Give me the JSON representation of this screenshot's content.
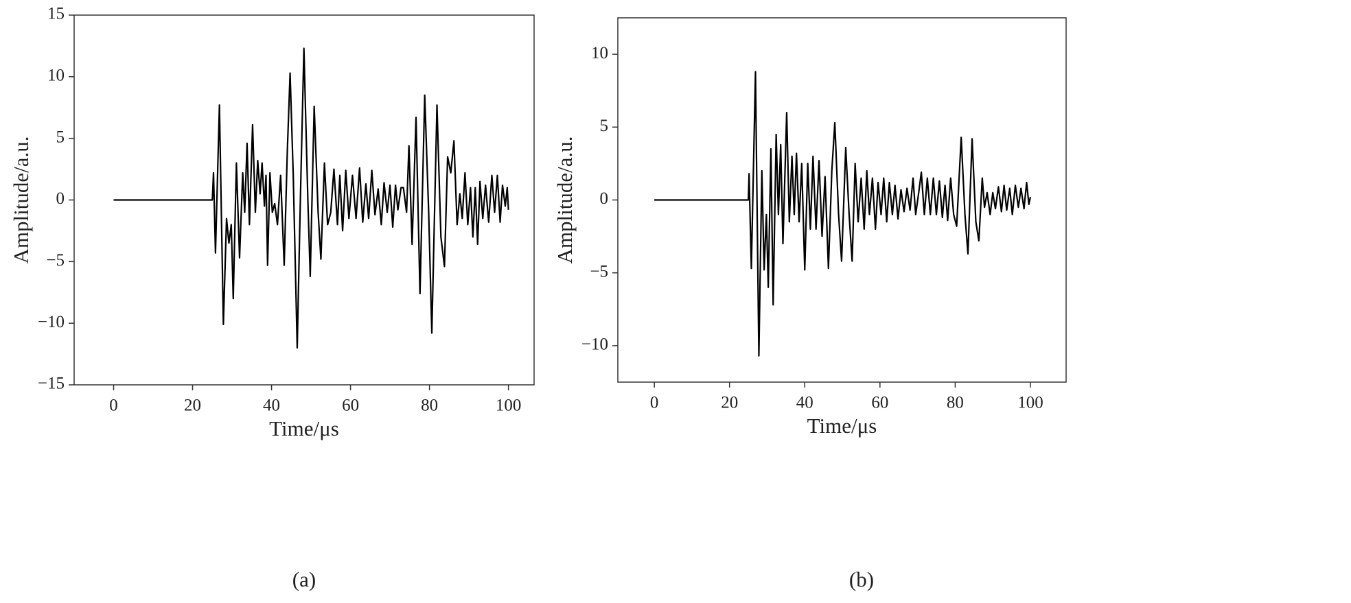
{
  "chart_data": [
    {
      "type": "line",
      "caption": "(a)",
      "xlabel": "Time/μs",
      "ylabel": "Amplitude/a.u.",
      "xlim": [
        -10,
        106.5
      ],
      "ylim": [
        -15,
        15
      ],
      "xticks": [
        0,
        20,
        40,
        60,
        80,
        100
      ],
      "yticks": [
        {
          "value": -15,
          "label": "−15"
        },
        {
          "value": -10,
          "label": "−10"
        },
        {
          "value": -5,
          "label": "−5"
        },
        0,
        5,
        10,
        15
      ],
      "x": [
        0,
        25,
        25.3,
        25.8,
        26.8,
        27.8,
        28.6,
        29.2,
        29.8,
        30.3,
        31.1,
        31.9,
        32.7,
        33.2,
        33.8,
        34.4,
        35.2,
        35.9,
        36.5,
        37.1,
        37.6,
        38.2,
        38.6,
        39,
        39.6,
        40.2,
        40.8,
        41.5,
        42.3,
        43.2,
        44,
        44.7,
        45.5,
        46.5,
        47.3,
        48.2,
        49.2,
        49.8,
        50.8,
        51.8,
        52.5,
        53.4,
        54.2,
        55,
        55.8,
        56.7,
        57.3,
        58,
        58.8,
        59.6,
        60.5,
        61.4,
        62.3,
        63.1,
        63.9,
        64.6,
        65.4,
        66.2,
        67,
        67.8,
        68.5,
        69.3,
        70,
        70.7,
        71.4,
        72,
        72.8,
        73.4,
        74.2,
        74.8,
        75.6,
        76.6,
        77.6,
        78.8,
        79.8,
        80.6,
        81.9,
        82.9,
        83.8,
        84.6,
        85.4,
        86.2,
        87,
        87.7,
        88.3,
        89,
        89.7,
        90.4,
        91,
        91.6,
        92.2,
        92.8,
        93.5,
        94.2,
        95,
        95.8,
        96.5,
        97.2,
        97.9,
        98.5,
        99.2,
        99.7,
        100
      ],
      "series": [
        {
          "color": "#000000",
          "values": [
            0,
            0,
            2.2,
            -4.3,
            7.7,
            -10.1,
            -1.5,
            -3.5,
            -2,
            -8,
            3,
            -4.7,
            2.2,
            -1,
            4.6,
            -2,
            6.1,
            -1,
            3.2,
            0.5,
            3,
            -0.5,
            2,
            -5.3,
            2.2,
            -1,
            -0.3,
            -2,
            2,
            -5.3,
            4,
            10.3,
            2,
            -12,
            0,
            12.3,
            0,
            -6.2,
            7.6,
            -1,
            -4.8,
            3,
            -2,
            -1,
            2.5,
            -2,
            2,
            -2.5,
            2.4,
            -1.5,
            2,
            -1.5,
            2.6,
            -1.8,
            1.3,
            -1.5,
            2.4,
            -1.2,
            0.9,
            -2,
            1.4,
            -1,
            1.2,
            -2.2,
            1.2,
            -0.8,
            1,
            1,
            -1,
            4.4,
            -3.6,
            6.7,
            -7.6,
            8.5,
            -1,
            -10.8,
            7.7,
            -3,
            -5.4,
            3.5,
            2.2,
            4.8,
            -2,
            0.5,
            -1.5,
            2.2,
            -2,
            1,
            -3,
            1,
            -3.6,
            1.5,
            -1.5,
            1.2,
            -1.8,
            2,
            -1,
            2,
            -1.8,
            1.2,
            -0.5,
            1,
            -0.8
          ]
        }
      ]
    },
    {
      "type": "line",
      "caption": "(b)",
      "xlabel": "Time/μs",
      "ylabel": "Amplitude/a.u.",
      "xlim": [
        -9.7,
        109.5
      ],
      "ylim": [
        -12.5,
        12.5
      ],
      "xticks": [
        0,
        20,
        40,
        60,
        80,
        100
      ],
      "yticks": [
        {
          "value": -10,
          "label": "−10"
        },
        {
          "value": -5,
          "label": "−5"
        },
        0,
        5,
        10
      ],
      "x": [
        0,
        25,
        25.2,
        25.8,
        26.9,
        27.8,
        28.6,
        29.2,
        29.8,
        30.3,
        31,
        31.6,
        32.4,
        33,
        33.6,
        34.2,
        35.2,
        35.9,
        36.6,
        37.2,
        37.8,
        38.5,
        39.2,
        40,
        40.8,
        41.5,
        42.2,
        43,
        43.8,
        44.6,
        45.4,
        46.3,
        47.2,
        48,
        49,
        49.8,
        50.9,
        51.8,
        52.6,
        53.4,
        54.2,
        55,
        55.8,
        56.5,
        57.2,
        58,
        58.8,
        59.5,
        60.3,
        61,
        61.8,
        62.5,
        63.3,
        64,
        64.8,
        65.6,
        66.4,
        67.2,
        68,
        68.8,
        69.5,
        70.3,
        71,
        71.8,
        72.6,
        73.4,
        74.2,
        75,
        75.8,
        76.6,
        77.3,
        78,
        78.8,
        79.6,
        80.4,
        81.6,
        82.6,
        83.4,
        84.5,
        85.5,
        86.3,
        87.2,
        87.8,
        88.5,
        89.3,
        90,
        90.7,
        91.5,
        92.3,
        93,
        93.7,
        94.5,
        95.2,
        96,
        96.8,
        97.5,
        98.3,
        99,
        99.6,
        100
      ],
      "series": [
        {
          "color": "#000000",
          "values": [
            0,
            0,
            1.8,
            -4.7,
            8.8,
            -10.7,
            2,
            -4.8,
            -1,
            -6,
            3.5,
            -7.2,
            4.5,
            -1,
            3.8,
            -3,
            6,
            -1.5,
            3,
            -1,
            3.2,
            -1.5,
            2.5,
            -4.8,
            2.5,
            -2,
            3,
            -2,
            2.7,
            -2.5,
            1.6,
            -4.7,
            2,
            5.3,
            -1,
            -4.2,
            3.6,
            -1,
            -4.2,
            2.5,
            -1.5,
            1.5,
            -2,
            2,
            -1,
            1.5,
            -2,
            1.2,
            -1,
            1.5,
            -1.5,
            1.2,
            -1,
            1,
            -1.3,
            0.7,
            -0.8,
            0.8,
            -0.7,
            1.5,
            -1,
            0.5,
            1.9,
            -1,
            1.5,
            -1,
            1.5,
            -1,
            1.3,
            -1.2,
            1,
            -1.4,
            1.5,
            -1,
            -1.8,
            4.3,
            -1,
            -3.7,
            4.2,
            -1.5,
            -2.8,
            1.5,
            -0.5,
            0.5,
            -1,
            0.5,
            -0.6,
            0.9,
            -0.8,
            1,
            -0.7,
            0.8,
            -1,
            1,
            -0.5,
            0.8,
            -0.6,
            1.2,
            -0.3,
            0.2
          ]
        }
      ]
    }
  ]
}
